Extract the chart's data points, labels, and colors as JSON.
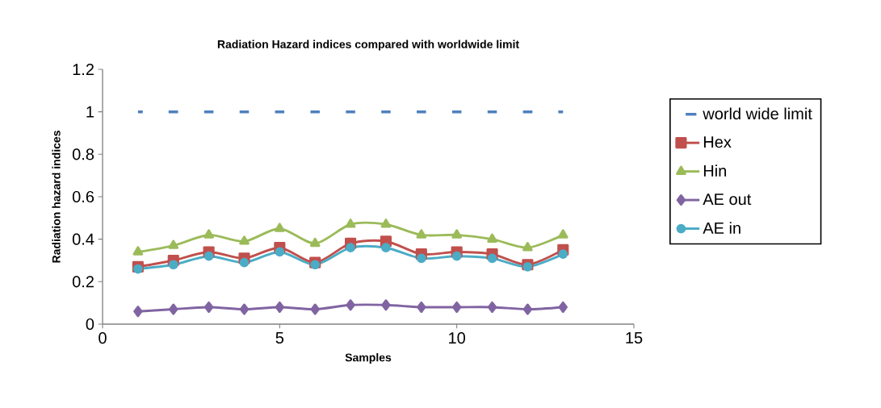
{
  "chart_data": {
    "type": "line",
    "title": "Radiation Hazard indices compared with worldwide limit",
    "xlabel": "Samples",
    "ylabel": "Radiation hazard indices",
    "x": [
      1,
      2,
      3,
      4,
      5,
      6,
      7,
      8,
      9,
      10,
      11,
      12,
      13
    ],
    "xlim": [
      0,
      15
    ],
    "xticks": [
      0,
      5,
      10,
      15
    ],
    "ylim": [
      0,
      1.2
    ],
    "yticks": [
      0,
      0.2,
      0.4,
      0.6,
      0.8,
      1,
      1.2
    ],
    "grid": false,
    "legend": "right",
    "series": [
      {
        "name": "world wide limit",
        "color": "#4f81bd",
        "marker": "none",
        "line_style": "dashed",
        "values": [
          1,
          1,
          1,
          1,
          1,
          1,
          1,
          1,
          1,
          1,
          1,
          1,
          1
        ]
      },
      {
        "name": "Hex",
        "color": "#c0504d",
        "marker": "square",
        "line_style": "solid",
        "values": [
          0.27,
          0.3,
          0.34,
          0.31,
          0.36,
          0.29,
          0.38,
          0.39,
          0.33,
          0.34,
          0.33,
          0.28,
          0.35
        ]
      },
      {
        "name": "Hin",
        "color": "#9bbb59",
        "marker": "triangle",
        "line_style": "solid",
        "values": [
          0.34,
          0.37,
          0.42,
          0.39,
          0.45,
          0.38,
          0.47,
          0.47,
          0.42,
          0.42,
          0.4,
          0.36,
          0.42
        ]
      },
      {
        "name": "AE out",
        "color": "#8064a2",
        "marker": "diamond",
        "line_style": "solid",
        "values": [
          0.06,
          0.07,
          0.08,
          0.07,
          0.08,
          0.07,
          0.09,
          0.09,
          0.08,
          0.08,
          0.08,
          0.07,
          0.08
        ]
      },
      {
        "name": "AE in",
        "color": "#4bacc6",
        "marker": "circle",
        "line_style": "solid",
        "values": [
          0.26,
          0.28,
          0.32,
          0.29,
          0.34,
          0.28,
          0.36,
          0.36,
          0.31,
          0.32,
          0.31,
          0.27,
          0.33
        ]
      }
    ]
  }
}
